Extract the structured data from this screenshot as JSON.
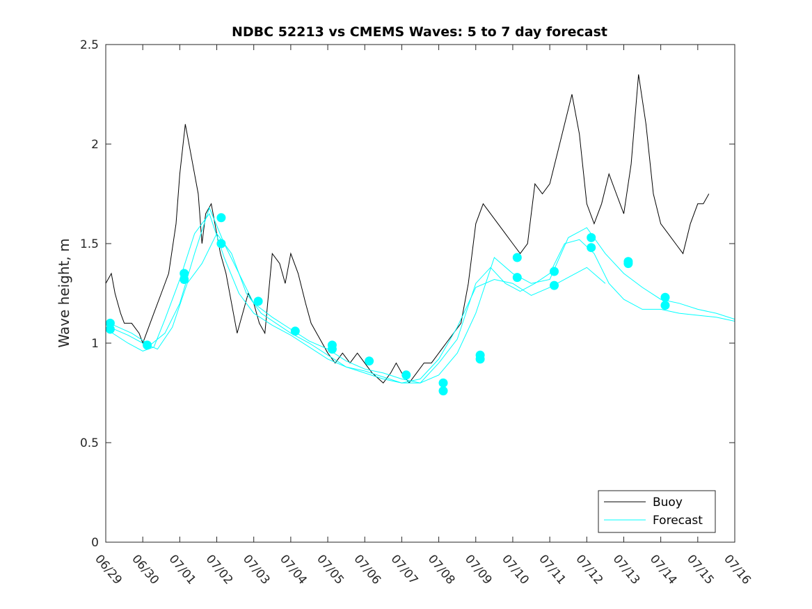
{
  "chart_data": {
    "type": "line",
    "title": "NDBC 52213 vs CMEMS Waves: 5 to 7 day forecast",
    "xlabel": "",
    "ylabel": "Wave height, m",
    "xlim": [
      0,
      17
    ],
    "ylim": [
      0,
      2.5
    ],
    "x_unit": "days since 06/29",
    "xticks": [
      0,
      1,
      2,
      3,
      4,
      5,
      6,
      7,
      8,
      9,
      10,
      11,
      12,
      13,
      14,
      15,
      16,
      17
    ],
    "xtick_labels": [
      "06/29",
      "06/30",
      "07/01",
      "07/02",
      "07/03",
      "07/04",
      "07/05",
      "07/06",
      "07/07",
      "07/08",
      "07/09",
      "07/10",
      "07/11",
      "07/12",
      "07/13",
      "07/14",
      "07/15",
      "07/16"
    ],
    "yticks": [
      0,
      0.5,
      1,
      1.5,
      2,
      2.5
    ],
    "ytick_labels": [
      "0",
      "0.5",
      "1",
      "1.5",
      "2",
      "2.5"
    ],
    "grid": false,
    "legend_position": "bottom-right",
    "legend": [
      "Buoy",
      "Forecast"
    ],
    "colors": {
      "buoy": "#000000",
      "forecast": "#00FFFF",
      "axes": "#262626"
    },
    "series": [
      {
        "name": "Buoy",
        "style": "line",
        "x": [
          0,
          0.15,
          0.25,
          0.4,
          0.5,
          0.7,
          0.9,
          1.0,
          1.1,
          1.3,
          1.5,
          1.7,
          1.9,
          2.0,
          2.15,
          2.3,
          2.5,
          2.6,
          2.7,
          2.85,
          3.0,
          3.1,
          3.25,
          3.4,
          3.55,
          3.7,
          3.85,
          4.0,
          4.15,
          4.3,
          4.5,
          4.7,
          4.85,
          5.0,
          5.2,
          5.4,
          5.55,
          5.7,
          5.85,
          6.0,
          6.2,
          6.4,
          6.6,
          6.8,
          7.0,
          7.2,
          7.5,
          7.7,
          7.85,
          8.0,
          8.2,
          8.4,
          8.6,
          8.8,
          9.0,
          9.2,
          9.4,
          9.6,
          9.8,
          10.0,
          10.2,
          10.4,
          10.6,
          10.8,
          11.0,
          11.2,
          11.4,
          11.6,
          11.8,
          12.0,
          12.2,
          12.4,
          12.6,
          12.8,
          13.0,
          13.2,
          13.4,
          13.6,
          13.8,
          14.0,
          14.2,
          14.4,
          14.6,
          14.8,
          15.0,
          15.2,
          15.4,
          15.6,
          15.8,
          16.0,
          16.15,
          16.3
        ],
        "y": [
          1.3,
          1.35,
          1.25,
          1.15,
          1.1,
          1.1,
          1.05,
          1.0,
          1.05,
          1.15,
          1.25,
          1.35,
          1.6,
          1.85,
          2.1,
          1.95,
          1.75,
          1.5,
          1.65,
          1.7,
          1.55,
          1.45,
          1.35,
          1.2,
          1.05,
          1.15,
          1.25,
          1.2,
          1.1,
          1.05,
          1.45,
          1.4,
          1.3,
          1.45,
          1.35,
          1.2,
          1.1,
          1.05,
          1.0,
          0.95,
          0.9,
          0.95,
          0.9,
          0.95,
          0.9,
          0.85,
          0.8,
          0.85,
          0.9,
          0.85,
          0.8,
          0.85,
          0.9,
          0.9,
          0.95,
          1.0,
          1.05,
          1.1,
          1.3,
          1.6,
          1.7,
          1.65,
          1.6,
          1.55,
          1.5,
          1.45,
          1.5,
          1.8,
          1.75,
          1.8,
          1.95,
          2.1,
          2.25,
          2.05,
          1.7,
          1.6,
          1.7,
          1.85,
          1.75,
          1.65,
          1.9,
          2.35,
          2.1,
          1.75,
          1.6,
          1.55,
          1.5,
          1.45,
          1.6,
          1.7,
          1.7,
          1.75
        ]
      },
      {
        "name": "Forecast",
        "style": "line",
        "x": [
          0.1,
          0.6,
          1.0,
          1.4,
          1.8,
          2.2,
          2.6,
          3.0,
          3.4,
          3.8,
          4.2,
          4.6,
          5.0,
          5.5,
          6.0,
          6.5,
          7.0,
          7.5,
          8.0,
          8.5,
          9.0,
          9.5,
          10.0,
          10.4,
          10.8,
          11.2,
          11.6,
          12.0,
          12.4,
          12.8,
          13.2,
          13.6,
          14.0,
          14.5,
          15.0,
          15.5,
          16.0,
          16.5,
          17.0
        ],
        "y": [
          1.08,
          1.04,
          1.0,
          0.97,
          1.08,
          1.3,
          1.4,
          1.55,
          1.45,
          1.25,
          1.15,
          1.1,
          1.05,
          1.0,
          0.94,
          0.88,
          0.86,
          0.83,
          0.8,
          0.8,
          0.9,
          1.02,
          1.3,
          1.38,
          1.3,
          1.26,
          1.3,
          1.35,
          1.5,
          1.52,
          1.45,
          1.3,
          1.22,
          1.17,
          1.17,
          1.15,
          1.14,
          1.13,
          1.11
        ]
      },
      {
        "name": "Forecast",
        "style": "line",
        "x": [
          0.1,
          0.6,
          1.0,
          1.3,
          1.6,
          2.0,
          2.4,
          2.8,
          3.2,
          3.6,
          4.0,
          4.5,
          5.0,
          5.5,
          6.0,
          6.5,
          7.0,
          7.5,
          8.0,
          8.5,
          9.0,
          9.5,
          10.0,
          10.5,
          11.0,
          11.5,
          12.0,
          12.5,
          13.0,
          13.5
        ],
        "y": [
          1.06,
          1.0,
          0.96,
          0.98,
          1.12,
          1.32,
          1.55,
          1.65,
          1.43,
          1.25,
          1.15,
          1.09,
          1.04,
          0.98,
          0.92,
          0.88,
          0.85,
          0.82,
          0.8,
          0.82,
          0.92,
          1.08,
          1.28,
          1.32,
          1.3,
          1.24,
          1.28,
          1.33,
          1.38,
          1.3
        ]
      },
      {
        "name": "Forecast",
        "style": "line",
        "x": [
          0.1,
          0.7,
          1.2,
          1.6,
          2.0,
          2.4,
          2.8,
          3.2,
          3.6,
          4.0,
          4.5,
          5.0,
          5.5,
          6.0,
          6.5,
          7.0,
          7.5,
          8.0,
          8.5,
          9.0,
          9.5,
          10.0,
          10.5,
          11.0,
          11.5,
          12.0,
          12.5,
          13.0,
          13.5,
          14.0,
          14.5,
          15.0,
          15.5,
          16.0,
          16.5,
          17.0
        ],
        "y": [
          1.1,
          1.05,
          0.99,
          1.05,
          1.2,
          1.45,
          1.68,
          1.5,
          1.35,
          1.2,
          1.13,
          1.07,
          1.01,
          0.97,
          0.91,
          0.87,
          0.85,
          0.82,
          0.8,
          0.84,
          0.95,
          1.15,
          1.43,
          1.35,
          1.3,
          1.32,
          1.53,
          1.58,
          1.45,
          1.35,
          1.28,
          1.22,
          1.2,
          1.17,
          1.15,
          1.12
        ]
      }
    ],
    "markers": {
      "name": "Forecast",
      "x": [
        0.12,
        0.12,
        1.12,
        2.12,
        2.12,
        3.12,
        3.12,
        4.12,
        5.12,
        6.12,
        6.12,
        7.12,
        8.12,
        9.12,
        9.12,
        10.12,
        10.12,
        11.12,
        11.12,
        12.12,
        12.12,
        13.12,
        13.12,
        14.12,
        14.12,
        15.12,
        15.12
      ],
      "y": [
        1.1,
        1.07,
        0.99,
        1.35,
        1.32,
        1.63,
        1.5,
        1.21,
        1.06,
        0.99,
        0.97,
        0.91,
        0.84,
        0.8,
        0.76,
        0.94,
        0.92,
        1.43,
        1.33,
        1.36,
        1.29,
        1.53,
        1.48,
        1.41,
        1.4,
        1.23,
        1.19
      ]
    }
  }
}
